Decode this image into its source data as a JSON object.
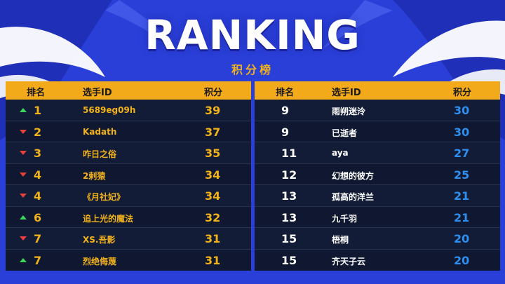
{
  "header": {
    "title": "RANKING",
    "subtitle": "积分榜"
  },
  "columns": {
    "rank": "排名",
    "player": "选手ID",
    "score": "积分"
  },
  "colors": {
    "accent": "#f2a91a",
    "panel": "#0f1830",
    "background": "#2a3fd8",
    "up": "#3cd65a",
    "down": "#e8413c",
    "score_right": "#2f8ff0"
  },
  "left": [
    {
      "trend": "up",
      "rank": "1",
      "player": "5689eg09h",
      "score": "39"
    },
    {
      "trend": "down",
      "rank": "2",
      "player": "Kadath",
      "score": "37"
    },
    {
      "trend": "down",
      "rank": "3",
      "player": "咋日之俗",
      "score": "35"
    },
    {
      "trend": "down",
      "rank": "4",
      "player": "2剌猿",
      "score": "34"
    },
    {
      "trend": "down",
      "rank": "4",
      "player": "《月社妃》",
      "score": "34"
    },
    {
      "trend": "up",
      "rank": "6",
      "player": "追上光的魔法",
      "score": "32"
    },
    {
      "trend": "down",
      "rank": "7",
      "player": "XS.吾影",
      "score": "31"
    },
    {
      "trend": "up",
      "rank": "7",
      "player": "烈绝侮蔑",
      "score": "31"
    }
  ],
  "right": [
    {
      "rank": "9",
      "player": "雨朔迷泠",
      "score": "30"
    },
    {
      "rank": "9",
      "player": "已逝者",
      "score": "30"
    },
    {
      "rank": "11",
      "player": "aya",
      "score": "27"
    },
    {
      "rank": "12",
      "player": "幻想的彼方",
      "score": "25"
    },
    {
      "rank": "13",
      "player": "孤高的洋兰",
      "score": "21"
    },
    {
      "rank": "13",
      "player": "九千羽",
      "score": "21"
    },
    {
      "rank": "15",
      "player": "梧桐",
      "score": "20"
    },
    {
      "rank": "15",
      "player": "齐天子云",
      "score": "20"
    }
  ]
}
